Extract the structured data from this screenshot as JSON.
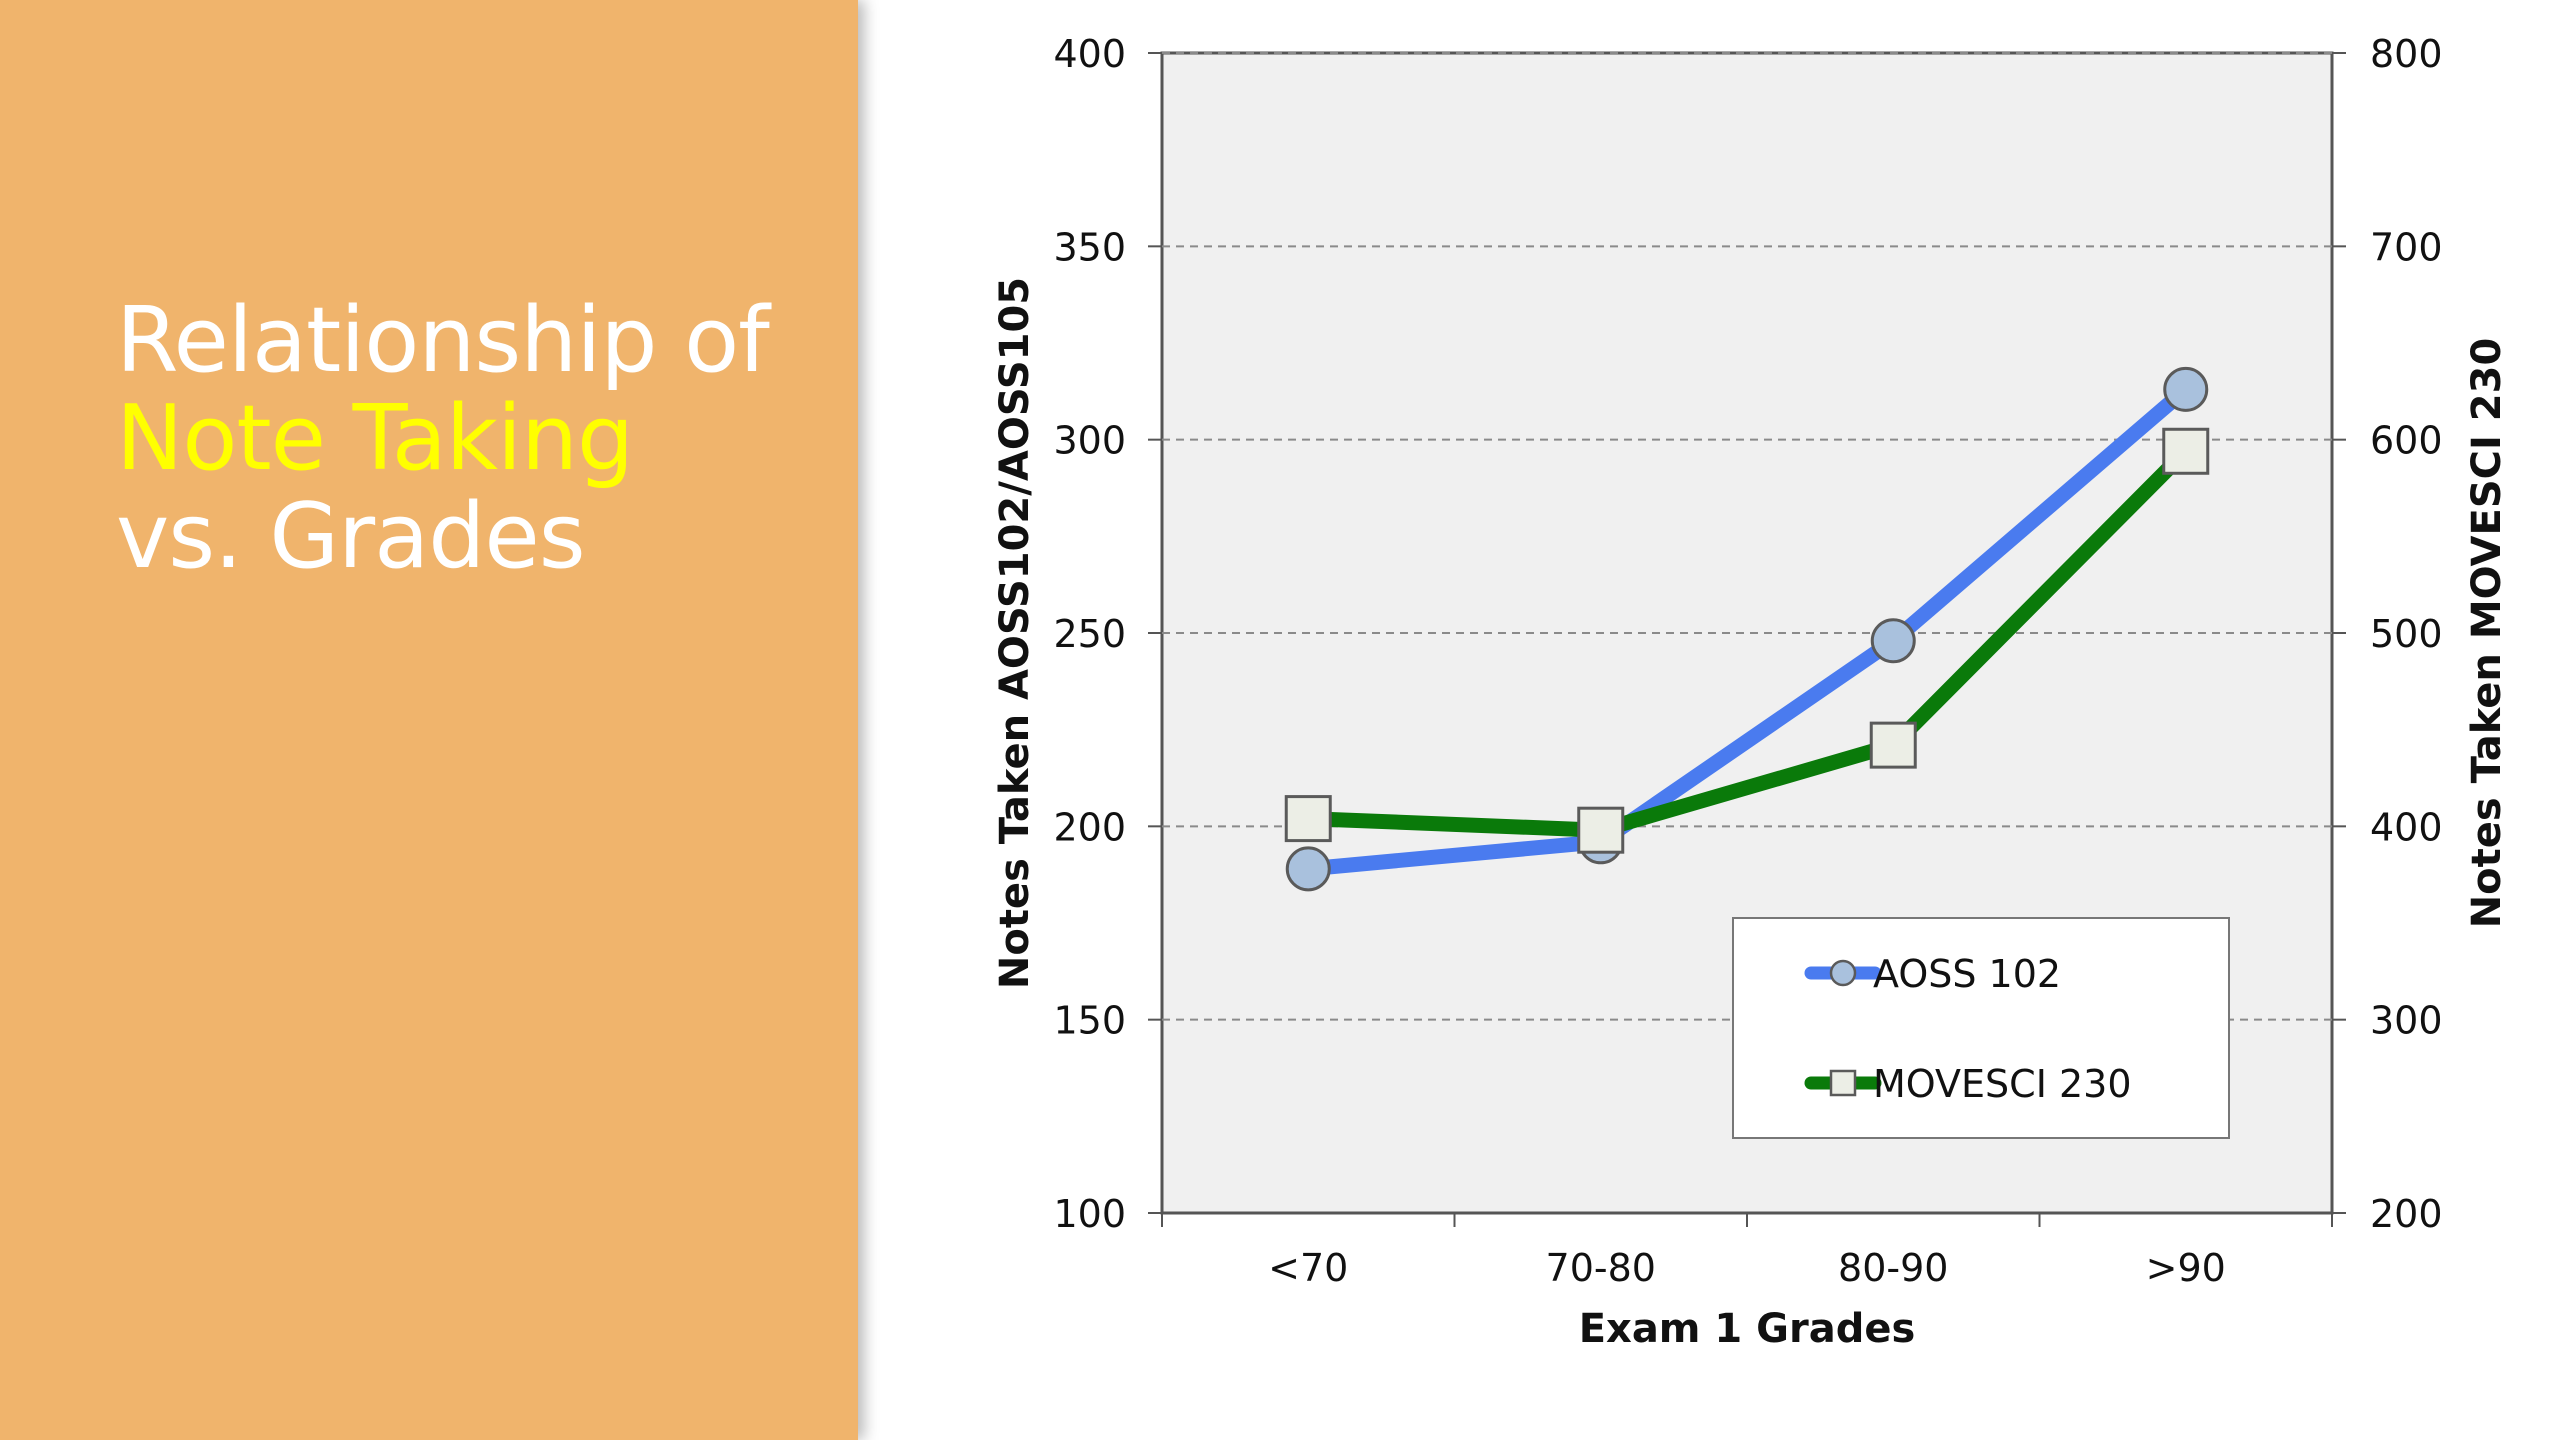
{
  "slide": {
    "title_line1": "Relationship of",
    "title_line2": "Note Taking",
    "title_line3": "vs. Grades",
    "background_color": "#f0b46c",
    "title_color": "#ffffff",
    "highlight_color": "#ffff00"
  },
  "chart_data": {
    "type": "line",
    "xlabel": "Exam 1 Grades",
    "ylabel": "Notes Taken AOSS102/AOSS105",
    "y2label": "Notes Taken MOVESCI 230",
    "categories": [
      "<70",
      "70-80",
      "80-90",
      ">90"
    ],
    "ylim": [
      100,
      400
    ],
    "y2lim": [
      200,
      800
    ],
    "yticks": [
      100,
      150,
      200,
      250,
      300,
      350,
      400
    ],
    "y2ticks": [
      200,
      300,
      400,
      500,
      600,
      700,
      800
    ],
    "grid": true,
    "legend_position": "bottom-right",
    "series": [
      {
        "name": "AOSS 102",
        "axis": "left",
        "values": [
          189,
          196,
          248,
          313
        ],
        "line_color": "#4a7bef",
        "marker": "circle",
        "marker_fill": "#a9c1dd"
      },
      {
        "name": "MOVESCI 230",
        "axis": "right",
        "values": [
          404,
          398,
          442,
          594
        ],
        "line_color": "#0a7a0a",
        "marker": "square",
        "marker_fill": "#eceee6"
      }
    ]
  }
}
